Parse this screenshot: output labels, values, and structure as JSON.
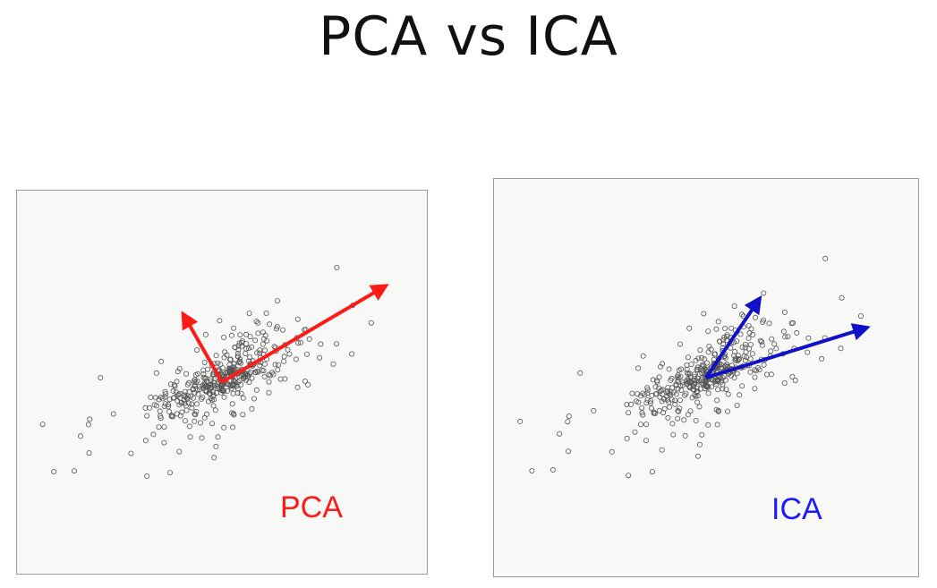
{
  "page": {
    "title": "PCA vs ICA"
  },
  "chart_data": [
    {
      "type": "scatter",
      "title": "",
      "label": "PCA",
      "label_color": "#ff1a1a",
      "arrow_color": "#ff1a1a",
      "point_color": "#555555",
      "grid": false,
      "legend": "none",
      "xlim": [
        -4.5,
        4.5
      ],
      "ylim": [
        -4.5,
        4.5
      ],
      "seed": 7,
      "point_count": 420,
      "origin": [
        0,
        0
      ],
      "vectors": [
        {
          "name": "",
          "x": 3.8,
          "y": 2.4
        },
        {
          "name": "",
          "x": -0.9,
          "y": 1.7
        }
      ]
    },
    {
      "type": "scatter",
      "title": "",
      "label": "ICA",
      "label_color": "#1a1aff",
      "arrow_color": "#1010c8",
      "point_color": "#555555",
      "grid": false,
      "legend": "none",
      "xlim": [
        -4.5,
        4.5
      ],
      "ylim": [
        -4.5,
        4.5
      ],
      "seed": 7,
      "point_count": 420,
      "origin": [
        0,
        0
      ],
      "vectors": [
        {
          "name": "",
          "x": 3.6,
          "y": 1.2
        },
        {
          "name": "",
          "x": 1.2,
          "y": 1.9
        }
      ]
    }
  ]
}
